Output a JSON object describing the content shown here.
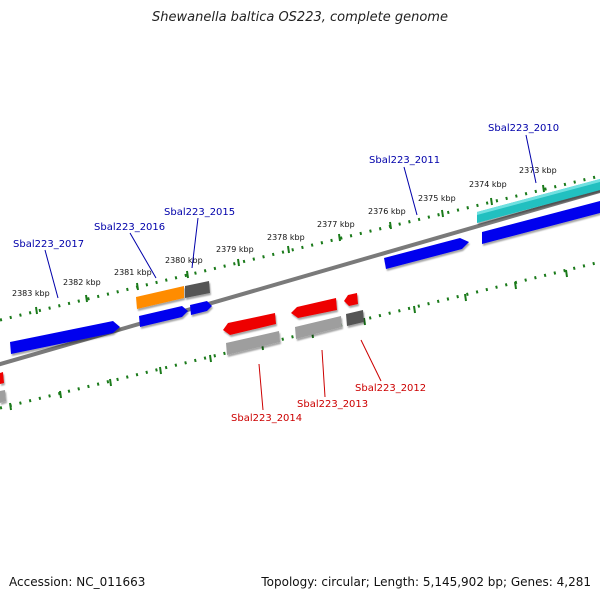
{
  "title": "Shewanella baltica OS223, complete genome",
  "footer": {
    "accession": "Accession: NC_011663",
    "summary": "Topology: circular; Length: 5,145,902 bp; Genes: 4,281"
  },
  "ticks": [
    "2373 kbp",
    "2374 kbp",
    "2375 kbp",
    "2376 kbp",
    "2377 kbp",
    "2378 kbp",
    "2379 kbp",
    "2380 kbp",
    "2381 kbp",
    "2382 kbp",
    "2383 kbp"
  ],
  "genes": [
    {
      "name": "Sbal223_2010",
      "strand": "plus",
      "color": "#0000aa"
    },
    {
      "name": "Sbal223_2011",
      "strand": "plus",
      "color": "#0000aa"
    },
    {
      "name": "Sbal223_2015",
      "strand": "plus",
      "color": "#0000aa"
    },
    {
      "name": "Sbal223_2016",
      "strand": "plus",
      "color": "#0000aa"
    },
    {
      "name": "Sbal223_2017",
      "strand": "plus",
      "color": "#0000aa"
    },
    {
      "name": "Sbal223_2012",
      "strand": "minus",
      "color": "#cc0000"
    },
    {
      "name": "Sbal223_2013",
      "strand": "minus",
      "color": "#cc0000"
    },
    {
      "name": "Sbal223_2014",
      "strand": "minus",
      "color": "#cc0000"
    }
  ],
  "colors": {
    "cds_plus": "#0000ee",
    "cds_minus": "#ee0000",
    "gene_feature": "#9e9e9e",
    "rrna_like": "#20c0c0",
    "orange_feature": "#ff8c00",
    "dark_feature": "#555555",
    "backbone": "#7a7a7a",
    "tick": "#1a7a1a",
    "label_plus": "#0000aa",
    "label_minus": "#cc0000"
  }
}
